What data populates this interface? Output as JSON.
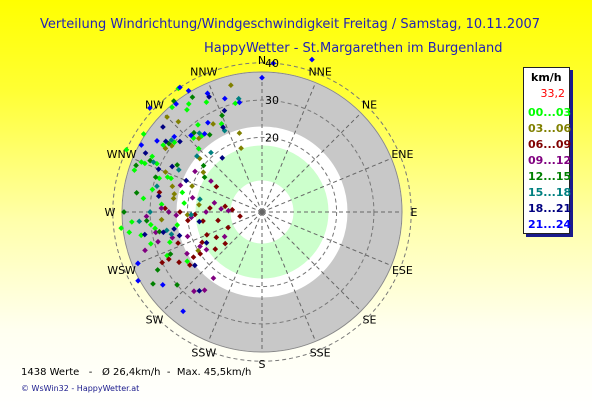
{
  "header": {
    "title": "Verteilung Windrichtung/Windgeschwindigkeit Freitag / Samstag, 10.11.2007",
    "subtitle": "HappyWetter - St.Margarethen im Burgenland"
  },
  "legend": {
    "unit": "km/h",
    "max": "33,2",
    "max_color": "#ff0000",
    "items": [
      {
        "label": "00...03",
        "color": "#00ff00"
      },
      {
        "label": "03...06",
        "color": "#808000"
      },
      {
        "label": "06...09",
        "color": "#800000"
      },
      {
        "label": "09...12",
        "color": "#800080"
      },
      {
        "label": "12...15",
        "color": "#008000"
      },
      {
        "label": "15...18",
        "color": "#008080"
      },
      {
        "label": "18...21",
        "color": "#000080"
      },
      {
        "label": "21...24",
        "color": "#0000ff"
      }
    ]
  },
  "footer": {
    "stats": "1438 Werte   -   Ø 26,4km/h  -  Max. 45,5km/h",
    "credit": "© WsWin32  -  HappyWetter.at"
  },
  "chart_data": {
    "type": "scatter",
    "title": "Verteilung Windrichtung/Windgeschwindigkeit Freitag / Samstag, 10.11.2007",
    "subtitle": "HappyWetter - St.Margarethen im Burgenland",
    "coordinate_system": "polar",
    "angle_unit": "compass direction",
    "radius_unit": "km/h",
    "rlim": [
      0,
      45
    ],
    "radial_ticks": [
      20,
      30,
      40
    ],
    "directions": [
      "N",
      "NNE",
      "NE",
      "ENE",
      "E",
      "ESE",
      "SE",
      "SSE",
      "S",
      "SSW",
      "SW",
      "WSW",
      "W",
      "WNW",
      "NW",
      "NNW"
    ],
    "ring_colors": [
      "#ffffff",
      "#ccffcc",
      "#ffffff",
      "#c8c8c8"
    ],
    "summary": {
      "count": 1438,
      "mean_kmh": 26.4,
      "max_kmh": 45.5
    },
    "series": [
      {
        "name": "00...03",
        "color": "#00ff00",
        "points": [
          [
            "WNW",
            36
          ],
          [
            "WNW",
            33
          ],
          [
            "WNW",
            30
          ],
          [
            "WNW",
            26
          ],
          [
            "W",
            32
          ],
          [
            "W",
            29
          ],
          [
            "W",
            25
          ],
          [
            "NW",
            34
          ],
          [
            "NW",
            30
          ],
          [
            "NW",
            27
          ],
          [
            "WNW",
            38
          ],
          [
            "W",
            35
          ],
          [
            "NW",
            37
          ],
          [
            "WSW",
            24
          ],
          [
            "WSW",
            28
          ],
          [
            "W",
            21
          ],
          [
            "WNW",
            22
          ],
          [
            "NW",
            24
          ],
          [
            "NNW",
            30
          ],
          [
            "W",
            38
          ],
          [
            "WNW",
            40
          ],
          [
            "NW",
            40
          ],
          [
            "WNW",
            29
          ],
          [
            "W",
            27
          ],
          [
            "NW",
            32
          ],
          [
            "NNW",
            26
          ],
          [
            "WSW",
            31
          ],
          [
            "W",
            23
          ],
          [
            "WNW",
            35
          ],
          [
            "NW",
            29
          ],
          [
            "W",
            30
          ],
          [
            "WNW",
            31
          ],
          [
            "NW",
            35
          ],
          [
            "NNW",
            33
          ],
          [
            "WSW",
            26
          ],
          [
            "W",
            33
          ],
          [
            "WNW",
            27
          ],
          [
            "NW",
            26
          ],
          [
            "W",
            36
          ],
          [
            "WNW",
            34
          ]
        ]
      },
      {
        "name": "03...06",
        "color": "#808000",
        "points": [
          [
            "NW",
            22
          ],
          [
            "NW",
            26
          ],
          [
            "WNW",
            24
          ],
          [
            "W",
            20
          ],
          [
            "NNW",
            22
          ],
          [
            "NW",
            30
          ],
          [
            "WNW",
            28
          ],
          [
            "W",
            24
          ],
          [
            "NNW",
            27
          ],
          [
            "NW",
            33
          ],
          [
            "WNW",
            31
          ],
          [
            "W",
            27
          ],
          [
            "NNW",
            18
          ],
          [
            "NW",
            19
          ],
          [
            "WNW",
            20
          ],
          [
            "W",
            17
          ],
          [
            "WSW",
            20
          ],
          [
            "NW",
            36
          ],
          [
            "NNW",
            35
          ],
          [
            "WNW",
            25
          ]
        ]
      },
      {
        "name": "06...09",
        "color": "#800000",
        "points": [
          [
            "WSW",
            18
          ],
          [
            "W",
            14
          ],
          [
            "WSW",
            22
          ],
          [
            "W",
            18
          ],
          [
            "SW",
            16
          ],
          [
            "WSW",
            26
          ],
          [
            "W",
            22
          ],
          [
            "W",
            10
          ],
          [
            "WSW",
            14
          ],
          [
            "W",
            26
          ],
          [
            "SW",
            20
          ],
          [
            "WSW",
            30
          ],
          [
            "W",
            8
          ],
          [
            "W",
            12
          ],
          [
            "WSW",
            10
          ],
          [
            "WNW",
            14
          ],
          [
            "W",
            16
          ],
          [
            "WSW",
            16
          ],
          [
            "SW",
            24
          ],
          [
            "W",
            20
          ],
          [
            "WSW",
            24
          ],
          [
            "W",
            28
          ],
          [
            "WSW",
            28
          ],
          [
            "SW",
            13
          ],
          [
            "W",
            6
          ]
        ]
      },
      {
        "name": "09...12",
        "color": "#800080",
        "points": [
          [
            "W",
            19
          ],
          [
            "WSW",
            21
          ],
          [
            "WNW",
            19
          ],
          [
            "W",
            23
          ],
          [
            "WSW",
            25
          ],
          [
            "SW",
            22
          ],
          [
            "W",
            15
          ],
          [
            "WNW",
            16
          ],
          [
            "WSW",
            19
          ],
          [
            "W",
            27
          ],
          [
            "SW",
            18
          ],
          [
            "WNW",
            23
          ],
          [
            "W",
            11
          ],
          [
            "WSW",
            12
          ],
          [
            "W",
            31
          ],
          [
            "WSW",
            29
          ],
          [
            "SW",
            26
          ],
          [
            "W",
            25
          ],
          [
            "WNW",
            21
          ],
          [
            "WSW",
            23
          ],
          [
            "W",
            9
          ],
          [
            "W",
            13
          ],
          [
            "SW",
            28
          ],
          [
            "WSW",
            33
          ],
          [
            "W",
            29
          ]
        ]
      },
      {
        "name": "12...15",
        "color": "#008000",
        "points": [
          [
            "WNW",
            30
          ],
          [
            "NW",
            28
          ],
          [
            "W",
            28
          ],
          [
            "WSW",
            27
          ],
          [
            "WNW",
            26
          ],
          [
            "NW",
            31
          ],
          [
            "NNW",
            28
          ],
          [
            "W",
            34
          ],
          [
            "WSW",
            32
          ],
          [
            "WNW",
            33
          ],
          [
            "NW",
            25
          ],
          [
            "W",
            31
          ],
          [
            "SW",
            30
          ],
          [
            "WSW",
            35
          ],
          [
            "WNW",
            36
          ],
          [
            "NW",
            38
          ],
          [
            "NNW",
            36
          ],
          [
            "W",
            37
          ],
          [
            "WNW",
            18
          ],
          [
            "NW",
            20
          ]
        ]
      },
      {
        "name": "15...18",
        "color": "#008080",
        "points": [
          [
            "NW",
            23
          ],
          [
            "WNW",
            25
          ],
          [
            "W",
            26
          ],
          [
            "NNW",
            24
          ],
          [
            "NW",
            27
          ],
          [
            "WNW",
            29
          ],
          [
            "W",
            30
          ],
          [
            "WSW",
            25
          ],
          [
            "NW",
            31
          ],
          [
            "WNW",
            32
          ],
          [
            "NNW",
            31
          ],
          [
            "W",
            33
          ],
          [
            "NW",
            21
          ],
          [
            "WNW",
            17
          ],
          [
            "W",
            19
          ]
        ]
      },
      {
        "name": "18...21",
        "color": "#000080",
        "points": [
          [
            "NW",
            29
          ],
          [
            "WNW",
            27
          ],
          [
            "W",
            24
          ],
          [
            "NNW",
            25
          ],
          [
            "WSW",
            23
          ],
          [
            "NW",
            32
          ],
          [
            "WNW",
            30
          ],
          [
            "W",
            28
          ],
          [
            "SW",
            27
          ],
          [
            "NNW",
            29
          ],
          [
            "WSW",
            27
          ],
          [
            "NW",
            35
          ],
          [
            "WNW",
            35
          ],
          [
            "W",
            32
          ],
          [
            "NNW",
            34
          ],
          [
            "SW",
            23
          ],
          [
            "W",
            17
          ],
          [
            "WNW",
            22
          ],
          [
            "NW",
            18
          ],
          [
            "WSW",
            17
          ]
        ]
      },
      {
        "name": "21...24",
        "color": "#0000ff",
        "points": [
          [
            "NW",
            31
          ],
          [
            "NNW",
            32
          ],
          [
            "NW",
            34
          ],
          [
            "NNW",
            35
          ],
          [
            "NW",
            37
          ],
          [
            "NNW",
            38
          ],
          [
            "WSW",
            36
          ],
          [
            "SW",
            33
          ],
          [
            "WSW",
            38
          ],
          [
            "NW",
            28
          ],
          [
            "NNW",
            30
          ],
          [
            "NNE",
            43
          ],
          [
            "N",
            40
          ],
          [
            "NNW",
            40
          ],
          [
            "NW",
            41
          ],
          [
            "WNW",
            37
          ],
          [
            "NNW",
            28
          ],
          [
            "N",
            36
          ],
          [
            "NW",
            26
          ],
          [
            "SW",
            34
          ]
        ]
      }
    ]
  }
}
